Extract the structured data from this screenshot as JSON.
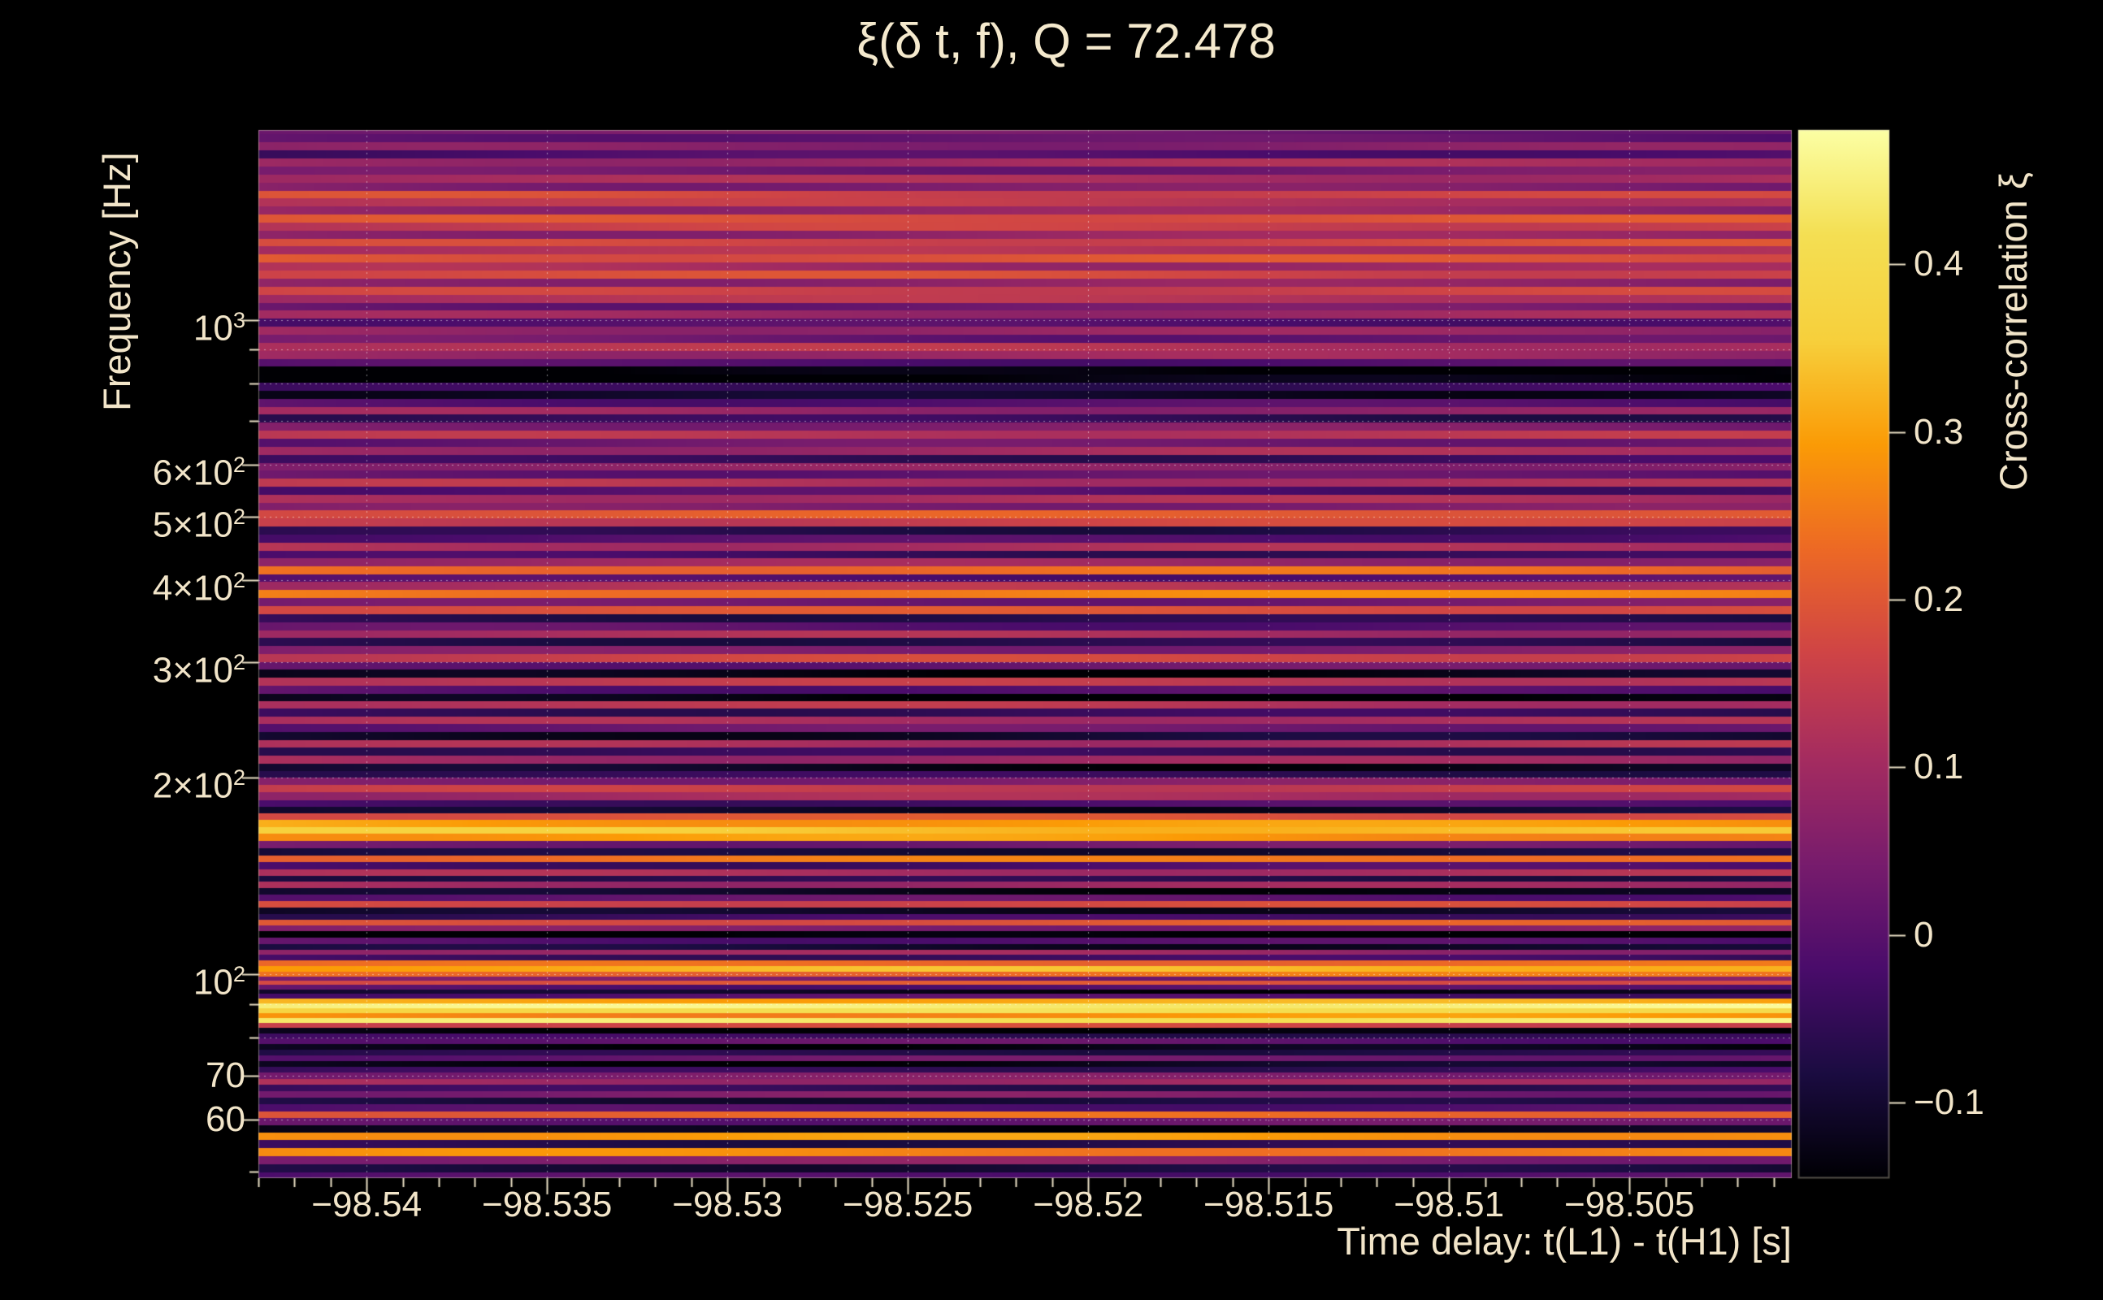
{
  "styles": {
    "background": "#000000",
    "text_color": "#f2e5c9",
    "tick_color": "#eadfc4",
    "grid_color": "rgba(255,255,255,0.5)"
  },
  "chart_data": {
    "type": "heatmap",
    "title": "ξ(δ t, f), Q = 72.478",
    "xlabel": "Time delay: t(L1) - t(H1) [s]",
    "ylabel": "Frequency [Hz]",
    "colorbar_label": "Cross-correlation ξ",
    "x_range": [
      -98.543,
      -98.5005
    ],
    "y_range": [
      48.8,
      1950
    ],
    "y_scale": "log",
    "value_range": [
      -0.145,
      0.48
    ],
    "x_ticks": {
      "values": [
        -98.54,
        -98.535,
        -98.53,
        -98.525,
        -98.52,
        -98.515,
        -98.51,
        -98.505
      ],
      "labels": [
        "−98.54",
        "−98.535",
        "−98.53",
        "−98.525",
        "−98.52",
        "−98.515",
        "−98.51",
        "−98.505"
      ]
    },
    "x_minor_step": 0.001,
    "y_ticks": {
      "values": [
        60,
        70,
        100,
        200,
        300,
        400,
        500,
        600,
        1000
      ],
      "labels": [
        "60",
        "70",
        "10^2",
        "2×10^2",
        "3×10^2",
        "4×10^2",
        "5×10^2",
        "6×10^2",
        "10^3"
      ]
    },
    "grid_y": [
      60,
      70,
      80,
      90,
      100,
      200,
      300,
      400,
      500,
      600,
      700,
      800,
      900,
      1000
    ],
    "colorbar_ticks": {
      "values": [
        -0.1,
        0,
        0.1,
        0.2,
        0.3,
        0.4
      ],
      "labels": [
        "−0.1",
        "0",
        "0.1",
        "0.2",
        "0.3",
        "0.4"
      ]
    },
    "colormap": [
      [
        0.0,
        "#000004"
      ],
      [
        0.1,
        "#1b0c41"
      ],
      [
        0.2,
        "#4a0c6b"
      ],
      [
        0.3,
        "#781c6d"
      ],
      [
        0.4,
        "#a52c60"
      ],
      [
        0.5,
        "#cf4446"
      ],
      [
        0.6,
        "#ed6925"
      ],
      [
        0.7,
        "#fb9b06"
      ],
      [
        0.8,
        "#f7d03c"
      ],
      [
        0.9,
        "#f4df53"
      ],
      [
        1.0,
        "#fcffa4"
      ]
    ],
    "bands": [
      [
        49,
        -0.02
      ],
      [
        50.5,
        -0.1
      ],
      [
        52,
        0.05
      ],
      [
        53.5,
        0.26
      ],
      [
        55,
        -0.06
      ],
      [
        56.5,
        0.3
      ],
      [
        58,
        -0.12
      ],
      [
        59.5,
        0.02
      ],
      [
        61,
        0.22
      ],
      [
        62.5,
        -0.02
      ],
      [
        64,
        -0.1
      ],
      [
        65.5,
        0.04
      ],
      [
        67,
        -0.06
      ],
      [
        68.5,
        0.1
      ],
      [
        70,
        0.06
      ],
      [
        71.5,
        -0.04
      ],
      [
        73,
        -0.12
      ],
      [
        74.5,
        0.02
      ],
      [
        76,
        -0.08
      ],
      [
        77.5,
        -0.14
      ],
      [
        79,
        0.0
      ],
      [
        80.5,
        -0.05
      ],
      [
        82,
        -0.14
      ],
      [
        83.5,
        0.18
      ],
      [
        85,
        0.44
      ],
      [
        86.5,
        0.28
      ],
      [
        88,
        0.4
      ],
      [
        89.5,
        0.44
      ],
      [
        91,
        0.3
      ],
      [
        92.5,
        -0.02
      ],
      [
        94,
        -0.12
      ],
      [
        95.5,
        0.0
      ],
      [
        97,
        0.2
      ],
      [
        98.5,
        0.05
      ],
      [
        100,
        0.24
      ],
      [
        102,
        0.32
      ],
      [
        104,
        0.22
      ],
      [
        106,
        -0.05
      ],
      [
        108,
        0.08
      ],
      [
        110,
        -0.1
      ],
      [
        112.5,
        0.0
      ],
      [
        115,
        -0.14
      ],
      [
        117.5,
        0.06
      ],
      [
        120,
        0.2
      ],
      [
        122.5,
        -0.04
      ],
      [
        125,
        -0.12
      ],
      [
        128,
        0.16
      ],
      [
        131,
        0.0
      ],
      [
        134,
        -0.12
      ],
      [
        137,
        0.1
      ],
      [
        140,
        -0.06
      ],
      [
        143,
        0.12
      ],
      [
        146.5,
        -0.02
      ],
      [
        150,
        0.24
      ],
      [
        154,
        -0.1
      ],
      [
        158,
        0.02
      ],
      [
        162,
        0.28
      ],
      [
        166,
        0.34
      ],
      [
        170,
        0.3
      ],
      [
        174,
        0.2
      ],
      [
        178,
        -0.1
      ],
      [
        182,
        -0.02
      ],
      [
        187,
        0.1
      ],
      [
        192,
        0.14
      ],
      [
        197,
        0.04
      ],
      [
        202,
        -0.06
      ],
      [
        207,
        -0.12
      ],
      [
        213,
        0.1
      ],
      [
        219,
        -0.04
      ],
      [
        225,
        0.12
      ],
      [
        231,
        -0.1
      ],
      [
        238,
        0.02
      ],
      [
        244,
        0.1
      ],
      [
        251,
        -0.06
      ],
      [
        258,
        0.12
      ],
      [
        265,
        -0.14
      ],
      [
        272,
        0.0
      ],
      [
        280,
        0.15
      ],
      [
        288,
        -0.12
      ],
      [
        296,
        0.02
      ],
      [
        304,
        0.16
      ],
      [
        313,
        0.04
      ],
      [
        322,
        -0.08
      ],
      [
        331,
        0.1
      ],
      [
        340,
        0.0
      ],
      [
        350,
        -0.06
      ],
      [
        360,
        0.2
      ],
      [
        370,
        0.04
      ],
      [
        381,
        0.26
      ],
      [
        392,
        0.12
      ],
      [
        403,
        -0.02
      ],
      [
        414,
        0.22
      ],
      [
        426,
        0.08
      ],
      [
        438,
        -0.04
      ],
      [
        450,
        0.12
      ],
      [
        463,
        0.0
      ],
      [
        476,
        -0.06
      ],
      [
        490,
        0.16
      ],
      [
        504,
        0.2
      ],
      [
        518,
        0.04
      ],
      [
        533,
        0.1
      ],
      [
        548,
        -0.02
      ],
      [
        564,
        0.12
      ],
      [
        580,
        0.02
      ],
      [
        596,
        0.08
      ],
      [
        613,
        -0.04
      ],
      [
        631,
        0.1
      ],
      [
        649,
        0.02
      ],
      [
        667,
        0.12
      ],
      [
        686,
        0.04
      ],
      [
        706,
        -0.06
      ],
      [
        726,
        0.08
      ],
      [
        747,
        0.0
      ],
      [
        768,
        -0.1
      ],
      [
        790,
        -0.04
      ],
      [
        813,
        -0.14
      ],
      [
        836,
        -0.15
      ],
      [
        860,
        -0.02
      ],
      [
        884,
        0.08
      ],
      [
        909,
        0.12
      ],
      [
        935,
        0.02
      ],
      [
        962,
        0.09
      ],
      [
        990,
        0.0
      ],
      [
        1018,
        0.1
      ],
      [
        1047,
        0.03
      ],
      [
        1077,
        0.12
      ],
      [
        1108,
        0.15
      ],
      [
        1140,
        0.06
      ],
      [
        1172,
        0.17
      ],
      [
        1206,
        0.1
      ],
      [
        1240,
        0.2
      ],
      [
        1276,
        0.13
      ],
      [
        1312,
        0.18
      ],
      [
        1350,
        0.08
      ],
      [
        1388,
        0.15
      ],
      [
        1428,
        0.18
      ],
      [
        1469,
        0.07
      ],
      [
        1511,
        0.13
      ],
      [
        1554,
        0.17
      ],
      [
        1598,
        0.06
      ],
      [
        1644,
        0.12
      ],
      [
        1691,
        0.04
      ],
      [
        1739,
        0.1
      ],
      [
        1789,
        -0.02
      ],
      [
        1840,
        0.05
      ],
      [
        1893,
        0.0
      ],
      [
        1947,
        0.03
      ]
    ]
  }
}
